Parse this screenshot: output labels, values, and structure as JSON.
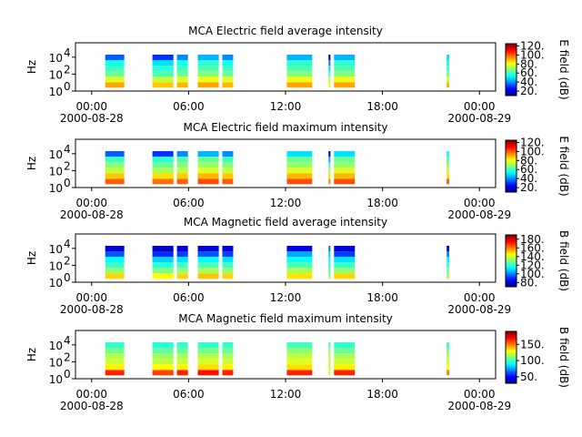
{
  "chart_data": [
    {
      "type": "spectrogram",
      "title": "MCA  Electric field average intensity",
      "ylabel": "Hz",
      "colorbar_label": "E field (dB)",
      "colormap": "jet",
      "log_y": true,
      "xlim": [
        -1,
        25
      ],
      "xticks": [
        {
          "value": 0,
          "label": "00:00"
        },
        {
          "value": 6,
          "label": "06:00"
        },
        {
          "value": 12,
          "label": "12:00"
        },
        {
          "value": 18,
          "label": "18:00"
        },
        {
          "value": 24,
          "label": "00:00"
        }
      ],
      "xtick_dates": [
        {
          "value": 0,
          "label": "2000-08-28"
        },
        {
          "value": 24,
          "label": "2000-08-29"
        }
      ],
      "ylim": [
        1,
        500000
      ],
      "yticks": [
        {
          "value": 1,
          "label": "10",
          "power": "0"
        },
        {
          "value": 100,
          "label": "10",
          "power": "2"
        },
        {
          "value": 10000,
          "label": "10",
          "power": "4"
        }
      ],
      "freq_bins": [
        2.5,
        11,
        50,
        224,
        1000,
        4470,
        20000
      ],
      "clim": [
        10,
        125
      ],
      "cticks": [
        {
          "value": 20,
          "label": "20."
        },
        {
          "value": 40,
          "label": "40."
        },
        {
          "value": 60,
          "label": "60."
        },
        {
          "value": 80,
          "label": "80."
        },
        {
          "value": 100,
          "label": "100."
        },
        {
          "value": 120,
          "label": "120."
        }
      ],
      "segments": [
        {
          "start": 0.84,
          "end": 2.02,
          "values": [
            92,
            78,
            65,
            60,
            55,
            35
          ]
        },
        {
          "start": 3.76,
          "end": 5.06,
          "values": [
            88,
            75,
            62,
            58,
            50,
            30
          ]
        },
        {
          "start": 5.28,
          "end": 5.96,
          "values": [
            90,
            78,
            65,
            60,
            55,
            40
          ]
        },
        {
          "start": 6.57,
          "end": 7.87,
          "values": [
            92,
            80,
            68,
            62,
            58,
            45
          ]
        },
        {
          "start": 8.09,
          "end": 8.76,
          "values": [
            90,
            78,
            65,
            60,
            55,
            40
          ]
        },
        {
          "start": 12.08,
          "end": 13.65,
          "values": [
            92,
            80,
            68,
            62,
            58,
            45
          ]
        },
        {
          "start": 14.66,
          "end": 14.78,
          "values": [
            80,
            75,
            60,
            50,
            40,
            20
          ]
        },
        {
          "start": 15.0,
          "end": 16.29,
          "values": [
            92,
            80,
            68,
            62,
            58,
            45
          ]
        },
        {
          "start": 21.97,
          "end": 22.13,
          "values": [
            90,
            75,
            65,
            60,
            55,
            50
          ]
        }
      ]
    },
    {
      "type": "spectrogram",
      "title": "MCA  Electric field maximum intensity",
      "ylabel": "Hz",
      "colorbar_label": "E field (dB)",
      "colormap": "jet",
      "log_y": true,
      "xlim": [
        -1,
        25
      ],
      "xticks": [
        {
          "value": 0,
          "label": "00:00"
        },
        {
          "value": 6,
          "label": "06:00"
        },
        {
          "value": 12,
          "label": "12:00"
        },
        {
          "value": 18,
          "label": "18:00"
        },
        {
          "value": 24,
          "label": "00:00"
        }
      ],
      "xtick_dates": [
        {
          "value": 0,
          "label": "2000-08-28"
        },
        {
          "value": 24,
          "label": "2000-08-29"
        }
      ],
      "ylim": [
        1,
        500000
      ],
      "yticks": [
        {
          "value": 1,
          "label": "10",
          "power": "0"
        },
        {
          "value": 100,
          "label": "10",
          "power": "2"
        },
        {
          "value": 10000,
          "label": "10",
          "power": "4"
        }
      ],
      "freq_bins": [
        2.5,
        11,
        50,
        224,
        1000,
        4470,
        20000
      ],
      "clim": [
        10,
        125
      ],
      "cticks": [
        {
          "value": 20,
          "label": "20."
        },
        {
          "value": 40,
          "label": "40."
        },
        {
          "value": 60,
          "label": "60."
        },
        {
          "value": 80,
          "label": "80."
        },
        {
          "value": 100,
          "label": "100."
        },
        {
          "value": 120,
          "label": "120."
        }
      ],
      "segments": [
        {
          "start": 0.84,
          "end": 2.02,
          "values": [
            100,
            88,
            75,
            68,
            60,
            35
          ]
        },
        {
          "start": 3.76,
          "end": 5.06,
          "values": [
            98,
            85,
            72,
            65,
            58,
            30
          ]
        },
        {
          "start": 5.28,
          "end": 5.96,
          "values": [
            100,
            88,
            75,
            68,
            62,
            40
          ]
        },
        {
          "start": 6.57,
          "end": 7.87,
          "values": [
            102,
            90,
            78,
            70,
            65,
            45
          ]
        },
        {
          "start": 8.09,
          "end": 8.76,
          "values": [
            100,
            88,
            75,
            68,
            60,
            40
          ]
        },
        {
          "start": 12.08,
          "end": 13.65,
          "values": [
            102,
            90,
            78,
            70,
            65,
            50
          ]
        },
        {
          "start": 14.66,
          "end": 14.78,
          "values": [
            95,
            85,
            70,
            60,
            45,
            20
          ]
        },
        {
          "start": 15.0,
          "end": 16.29,
          "values": [
            102,
            90,
            78,
            70,
            65,
            50
          ]
        },
        {
          "start": 21.97,
          "end": 22.13,
          "values": [
            100,
            85,
            75,
            68,
            62,
            55
          ]
        }
      ]
    },
    {
      "type": "spectrogram",
      "title": "MCA  Magnetic field average intensity",
      "ylabel": "Hz",
      "colorbar_label": "B field (dB)",
      "colormap": "jet",
      "log_y": true,
      "xlim": [
        -1,
        25
      ],
      "xticks": [
        {
          "value": 0,
          "label": "00:00"
        },
        {
          "value": 6,
          "label": "06:00"
        },
        {
          "value": 12,
          "label": "12:00"
        },
        {
          "value": 18,
          "label": "18:00"
        },
        {
          "value": 24,
          "label": "00:00"
        }
      ],
      "xtick_dates": [
        {
          "value": 0,
          "label": "2000-08-28"
        },
        {
          "value": 24,
          "label": "2000-08-29"
        }
      ],
      "ylim": [
        1,
        500000
      ],
      "yticks": [
        {
          "value": 1,
          "label": "10",
          "power": "0"
        },
        {
          "value": 100,
          "label": "10",
          "power": "2"
        },
        {
          "value": 10000,
          "label": "10",
          "power": "4"
        }
      ],
      "freq_bins": [
        2.5,
        11,
        50,
        224,
        1000,
        4470,
        20000
      ],
      "clim": [
        70,
        190
      ],
      "cticks": [
        {
          "value": 80,
          "label": "80."
        },
        {
          "value": 100,
          "label": "100."
        },
        {
          "value": 120,
          "label": "120."
        },
        {
          "value": 140,
          "label": "140."
        },
        {
          "value": 160,
          "label": "160."
        },
        {
          "value": 180,
          "label": "180."
        }
      ],
      "segments": [
        {
          "start": 0.84,
          "end": 2.02,
          "values": [
            150,
            132,
            122,
            115,
            95,
            80
          ]
        },
        {
          "start": 3.76,
          "end": 5.06,
          "values": [
            145,
            130,
            120,
            110,
            90,
            78
          ]
        },
        {
          "start": 5.28,
          "end": 5.96,
          "values": [
            150,
            132,
            122,
            112,
            92,
            80
          ]
        },
        {
          "start": 6.57,
          "end": 7.87,
          "values": [
            152,
            135,
            124,
            115,
            95,
            80
          ]
        },
        {
          "start": 8.09,
          "end": 8.76,
          "values": [
            150,
            132,
            122,
            112,
            92,
            80
          ]
        },
        {
          "start": 12.08,
          "end": 13.65,
          "values": [
            148,
            135,
            124,
            116,
            105,
            82
          ]
        },
        {
          "start": 14.66,
          "end": 14.78,
          "values": [
            130,
            125,
            120,
            115,
            110,
            100
          ]
        },
        {
          "start": 15.0,
          "end": 16.29,
          "values": [
            150,
            132,
            122,
            112,
            92,
            80
          ]
        },
        {
          "start": 21.97,
          "end": 22.13,
          "values": [
            135,
            128,
            122,
            115,
            100,
            80
          ]
        }
      ]
    },
    {
      "type": "spectrogram",
      "title": "MCA  Magnetic field maximum intensity",
      "ylabel": "Hz",
      "colorbar_label": "B field (dB)",
      "colormap": "jet",
      "log_y": true,
      "xlim": [
        -1,
        25
      ],
      "xticks": [
        {
          "value": 0,
          "label": "00:00"
        },
        {
          "value": 6,
          "label": "06:00"
        },
        {
          "value": 12,
          "label": "12:00"
        },
        {
          "value": 18,
          "label": "18:00"
        },
        {
          "value": 24,
          "label": "00:00"
        }
      ],
      "xtick_dates": [
        {
          "value": 0,
          "label": "2000-08-28"
        },
        {
          "value": 24,
          "label": "2000-08-29"
        }
      ],
      "ylim": [
        1,
        500000
      ],
      "yticks": [
        {
          "value": 1,
          "label": "10",
          "power": "0"
        },
        {
          "value": 100,
          "label": "10",
          "power": "2"
        },
        {
          "value": 10000,
          "label": "10",
          "power": "4"
        }
      ],
      "freq_bins": [
        2.5,
        11,
        50,
        224,
        1000,
        4470,
        20000
      ],
      "clim": [
        30,
        190
      ],
      "cticks": [
        {
          "value": 50,
          "label": "50."
        },
        {
          "value": 100,
          "label": "100."
        },
        {
          "value": 150,
          "label": "150."
        }
      ],
      "segments": [
        {
          "start": 0.84,
          "end": 2.02,
          "values": [
            165,
            132,
            122,
            118,
            108,
            98
          ]
        },
        {
          "start": 3.76,
          "end": 5.06,
          "values": [
            160,
            130,
            120,
            115,
            105,
            96
          ]
        },
        {
          "start": 5.28,
          "end": 5.96,
          "values": [
            165,
            132,
            122,
            116,
            106,
            98
          ]
        },
        {
          "start": 6.57,
          "end": 7.87,
          "values": [
            168,
            135,
            124,
            118,
            108,
            98
          ]
        },
        {
          "start": 8.09,
          "end": 8.76,
          "values": [
            165,
            132,
            122,
            116,
            106,
            98
          ]
        },
        {
          "start": 12.08,
          "end": 13.65,
          "values": [
            165,
            135,
            125,
            120,
            112,
            100
          ]
        },
        {
          "start": 14.66,
          "end": 14.78,
          "values": [
            125,
            122,
            120,
            118,
            115,
            100
          ]
        },
        {
          "start": 15.0,
          "end": 16.29,
          "values": [
            165,
            132,
            122,
            116,
            106,
            98
          ]
        },
        {
          "start": 21.97,
          "end": 22.13,
          "values": [
            150,
            130,
            122,
            116,
            108,
            98
          ]
        }
      ]
    }
  ]
}
